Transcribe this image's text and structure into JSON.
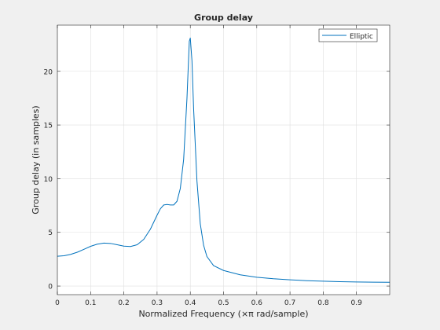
{
  "chart_data": {
    "type": "line",
    "title": "Group delay",
    "xlabel": "Normalized Frequency (×π rad/sample)",
    "ylabel": "Group delay (in samples)",
    "xlim": [
      0,
      1
    ],
    "ylim": [
      -0.8,
      24.3
    ],
    "xticks": [
      0,
      0.1,
      0.2,
      0.3,
      0.4,
      0.5,
      0.6,
      0.7,
      0.8,
      0.9
    ],
    "xtick_labels": [
      "0",
      "0.1",
      "0.2",
      "0.3",
      "0.4",
      "0.5",
      "0.6",
      "0.7",
      "0.8",
      "0.9"
    ],
    "yticks": [
      0,
      5,
      10,
      15,
      20
    ],
    "ytick_labels": [
      "0",
      "5",
      "10",
      "15",
      "20"
    ],
    "grid": true,
    "legend": {
      "position": "top-right",
      "entries": [
        "Elliptic"
      ]
    },
    "series": [
      {
        "name": "Elliptic",
        "color": "#0072bd",
        "points": [
          [
            0.0,
            2.78
          ],
          [
            0.02,
            2.82
          ],
          [
            0.04,
            2.95
          ],
          [
            0.06,
            3.15
          ],
          [
            0.08,
            3.42
          ],
          [
            0.1,
            3.7
          ],
          [
            0.12,
            3.9
          ],
          [
            0.14,
            4.0
          ],
          [
            0.16,
            3.97
          ],
          [
            0.18,
            3.85
          ],
          [
            0.2,
            3.72
          ],
          [
            0.22,
            3.68
          ],
          [
            0.24,
            3.85
          ],
          [
            0.26,
            4.35
          ],
          [
            0.28,
            5.3
          ],
          [
            0.3,
            6.6
          ],
          [
            0.31,
            7.2
          ],
          [
            0.32,
            7.55
          ],
          [
            0.33,
            7.6
          ],
          [
            0.34,
            7.55
          ],
          [
            0.35,
            7.55
          ],
          [
            0.36,
            7.9
          ],
          [
            0.37,
            9.1
          ],
          [
            0.38,
            11.8
          ],
          [
            0.39,
            17.5
          ],
          [
            0.397,
            22.8
          ],
          [
            0.4,
            23.1
          ],
          [
            0.405,
            21.0
          ],
          [
            0.41,
            16.5
          ],
          [
            0.42,
            9.8
          ],
          [
            0.43,
            5.8
          ],
          [
            0.44,
            3.8
          ],
          [
            0.45,
            2.75
          ],
          [
            0.47,
            1.9
          ],
          [
            0.5,
            1.45
          ],
          [
            0.55,
            1.05
          ],
          [
            0.6,
            0.82
          ],
          [
            0.65,
            0.68
          ],
          [
            0.7,
            0.58
          ],
          [
            0.75,
            0.5
          ],
          [
            0.8,
            0.45
          ],
          [
            0.85,
            0.41
          ],
          [
            0.9,
            0.38
          ],
          [
            0.95,
            0.36
          ],
          [
            1.0,
            0.35
          ]
        ]
      }
    ]
  }
}
